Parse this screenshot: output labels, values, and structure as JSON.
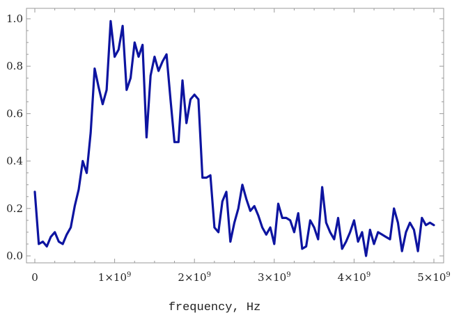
{
  "colors": {
    "series": "#0d14a0",
    "frame": "#9a9a9a",
    "text": "#222222"
  },
  "chart_data": {
    "type": "line",
    "title": "",
    "xlabel": "frequency, Hz",
    "ylabel": "",
    "xlim": [
      0,
      5000000000
    ],
    "ylim": [
      0,
      1.0
    ],
    "grid": false,
    "x_ticks": [
      {
        "value": 0,
        "mantissa": "0",
        "exponent": ""
      },
      {
        "value": 1000000000,
        "mantissa": "1×10",
        "exponent": "9"
      },
      {
        "value": 2000000000,
        "mantissa": "2×10",
        "exponent": "9"
      },
      {
        "value": 3000000000,
        "mantissa": "3×10",
        "exponent": "9"
      },
      {
        "value": 4000000000,
        "mantissa": "4×10",
        "exponent": "9"
      },
      {
        "value": 5000000000,
        "mantissa": "5×10",
        "exponent": "9"
      }
    ],
    "y_ticks": [
      {
        "value": 0.0,
        "label": "0.0"
      },
      {
        "value": 0.2,
        "label": "0.2"
      },
      {
        "value": 0.4,
        "label": "0.4"
      },
      {
        "value": 0.6,
        "label": "0.6"
      },
      {
        "value": 0.8,
        "label": "0.8"
      },
      {
        "value": 1.0,
        "label": "1.0"
      }
    ],
    "series": [
      {
        "x": [
          0,
          50000000,
          100000000,
          150000000,
          200000000,
          250000000,
          300000000,
          350000000,
          400000000,
          450000000,
          500000000,
          550000000,
          600000000,
          650000000,
          700000000,
          750000000,
          800000000,
          850000000,
          900000000,
          950000000,
          1000000000,
          1050000000,
          1100000000,
          1150000000,
          1200000000,
          1250000000,
          1300000000,
          1350000000,
          1400000000,
          1450000000,
          1500000000,
          1550000000,
          1600000000,
          1650000000,
          1700000000,
          1750000000,
          1800000000,
          1850000000,
          1900000000,
          1950000000,
          2000000000,
          2050000000,
          2100000000,
          2150000000,
          2200000000,
          2250000000,
          2300000000,
          2350000000,
          2400000000,
          2450000000,
          2500000000,
          2550000000,
          2600000000,
          2650000000,
          2700000000,
          2750000000,
          2800000000,
          2850000000,
          2900000000,
          2950000000,
          3000000000,
          3050000000,
          3100000000,
          3150000000,
          3200000000,
          3250000000,
          3300000000,
          3350000000,
          3400000000,
          3450000000,
          3500000000,
          3550000000,
          3600000000,
          3650000000,
          3700000000,
          3750000000,
          3800000000,
          3850000000,
          3900000000,
          3950000000,
          4000000000,
          4050000000,
          4100000000,
          4150000000,
          4200000000,
          4250000000,
          4300000000,
          4350000000,
          4400000000,
          4450000000,
          4500000000,
          4550000000,
          4600000000,
          4650000000,
          4700000000,
          4750000000,
          4800000000,
          4850000000,
          4900000000,
          4950000000,
          5000000000
        ],
        "y": [
          0.27,
          0.05,
          0.06,
          0.04,
          0.08,
          0.1,
          0.06,
          0.05,
          0.09,
          0.12,
          0.21,
          0.28,
          0.4,
          0.35,
          0.52,
          0.79,
          0.71,
          0.64,
          0.7,
          0.99,
          0.84,
          0.87,
          0.97,
          0.7,
          0.75,
          0.9,
          0.84,
          0.89,
          0.5,
          0.76,
          0.84,
          0.78,
          0.82,
          0.85,
          0.66,
          0.48,
          0.48,
          0.74,
          0.56,
          0.66,
          0.68,
          0.66,
          0.33,
          0.33,
          0.34,
          0.12,
          0.1,
          0.23,
          0.27,
          0.06,
          0.14,
          0.2,
          0.3,
          0.24,
          0.19,
          0.21,
          0.17,
          0.12,
          0.09,
          0.12,
          0.05,
          0.22,
          0.16,
          0.16,
          0.15,
          0.1,
          0.18,
          0.03,
          0.04,
          0.15,
          0.12,
          0.07,
          0.29,
          0.14,
          0.1,
          0.07,
          0.16,
          0.03,
          0.06,
          0.1,
          0.15,
          0.06,
          0.1,
          0.0,
          0.11,
          0.05,
          0.1,
          0.09,
          0.08,
          0.07,
          0.2,
          0.14,
          0.02,
          0.1,
          0.14,
          0.11,
          0.02,
          0.16,
          0.13,
          0.14,
          0.13
        ]
      }
    ]
  }
}
